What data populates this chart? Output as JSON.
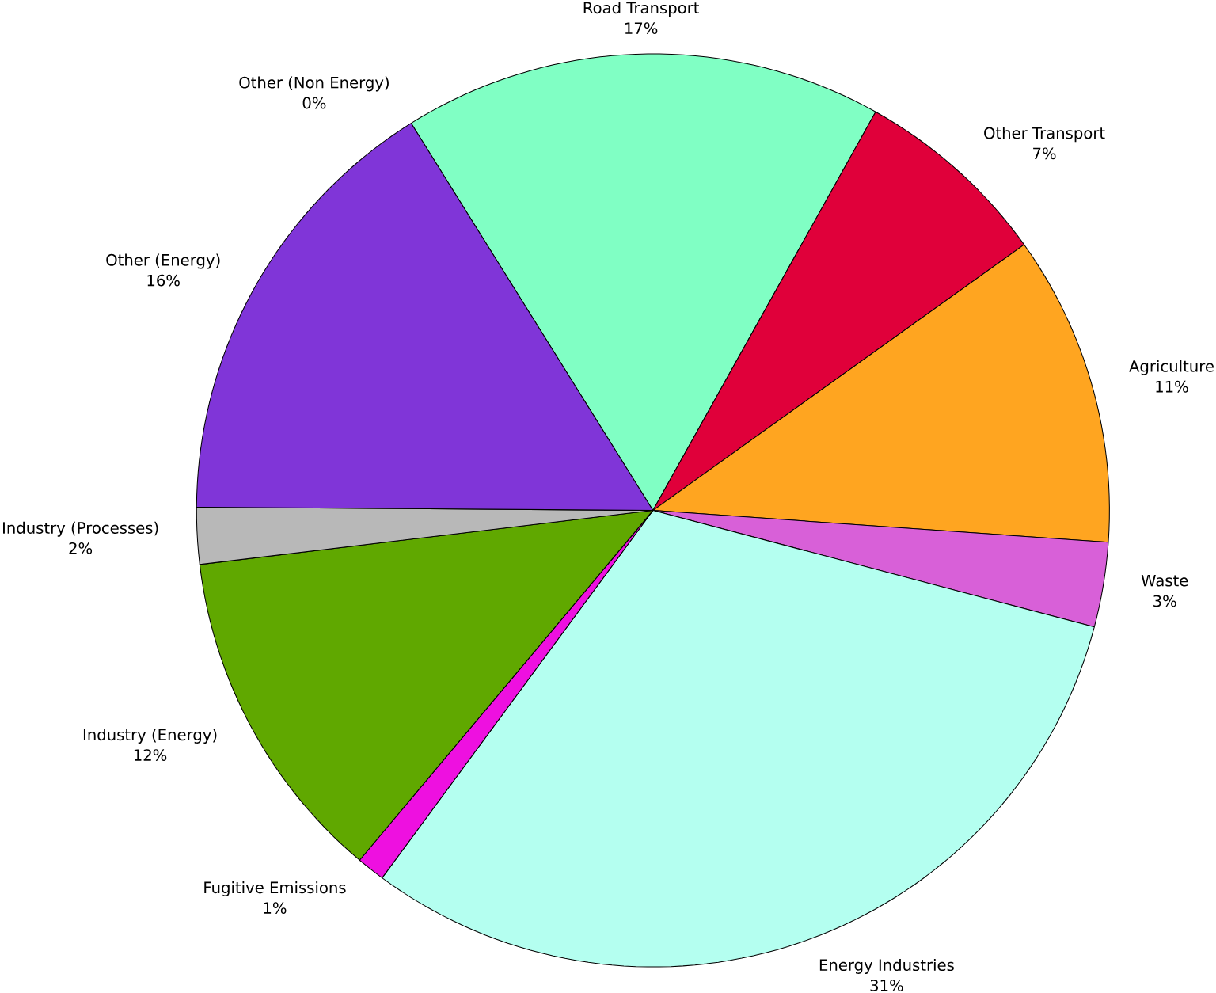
{
  "chart_data": {
    "type": "pie",
    "categories": [
      "Road Transport",
      "Other Transport",
      "Agriculture",
      "Waste",
      "Energy Industries",
      "Fugitive Emissions",
      "Industry (Energy)",
      "Industry (Processes)",
      "Other (Energy)",
      "Other (Non Energy)"
    ],
    "values": [
      17,
      7,
      11,
      3,
      31,
      1,
      12,
      2,
      16,
      0
    ],
    "value_labels": [
      "17%",
      "7%",
      "11%",
      "3%",
      "31%",
      "1%",
      "12%",
      "2%",
      "16%",
      "0%"
    ],
    "colors": [
      "#80ffc4",
      "#e0003a",
      "#ffa520",
      "#d860d8",
      "#b4fff0",
      "#ee10e0",
      "#60a800",
      "#b8b8b8",
      "#8035d8",
      "#2040a0"
    ]
  }
}
